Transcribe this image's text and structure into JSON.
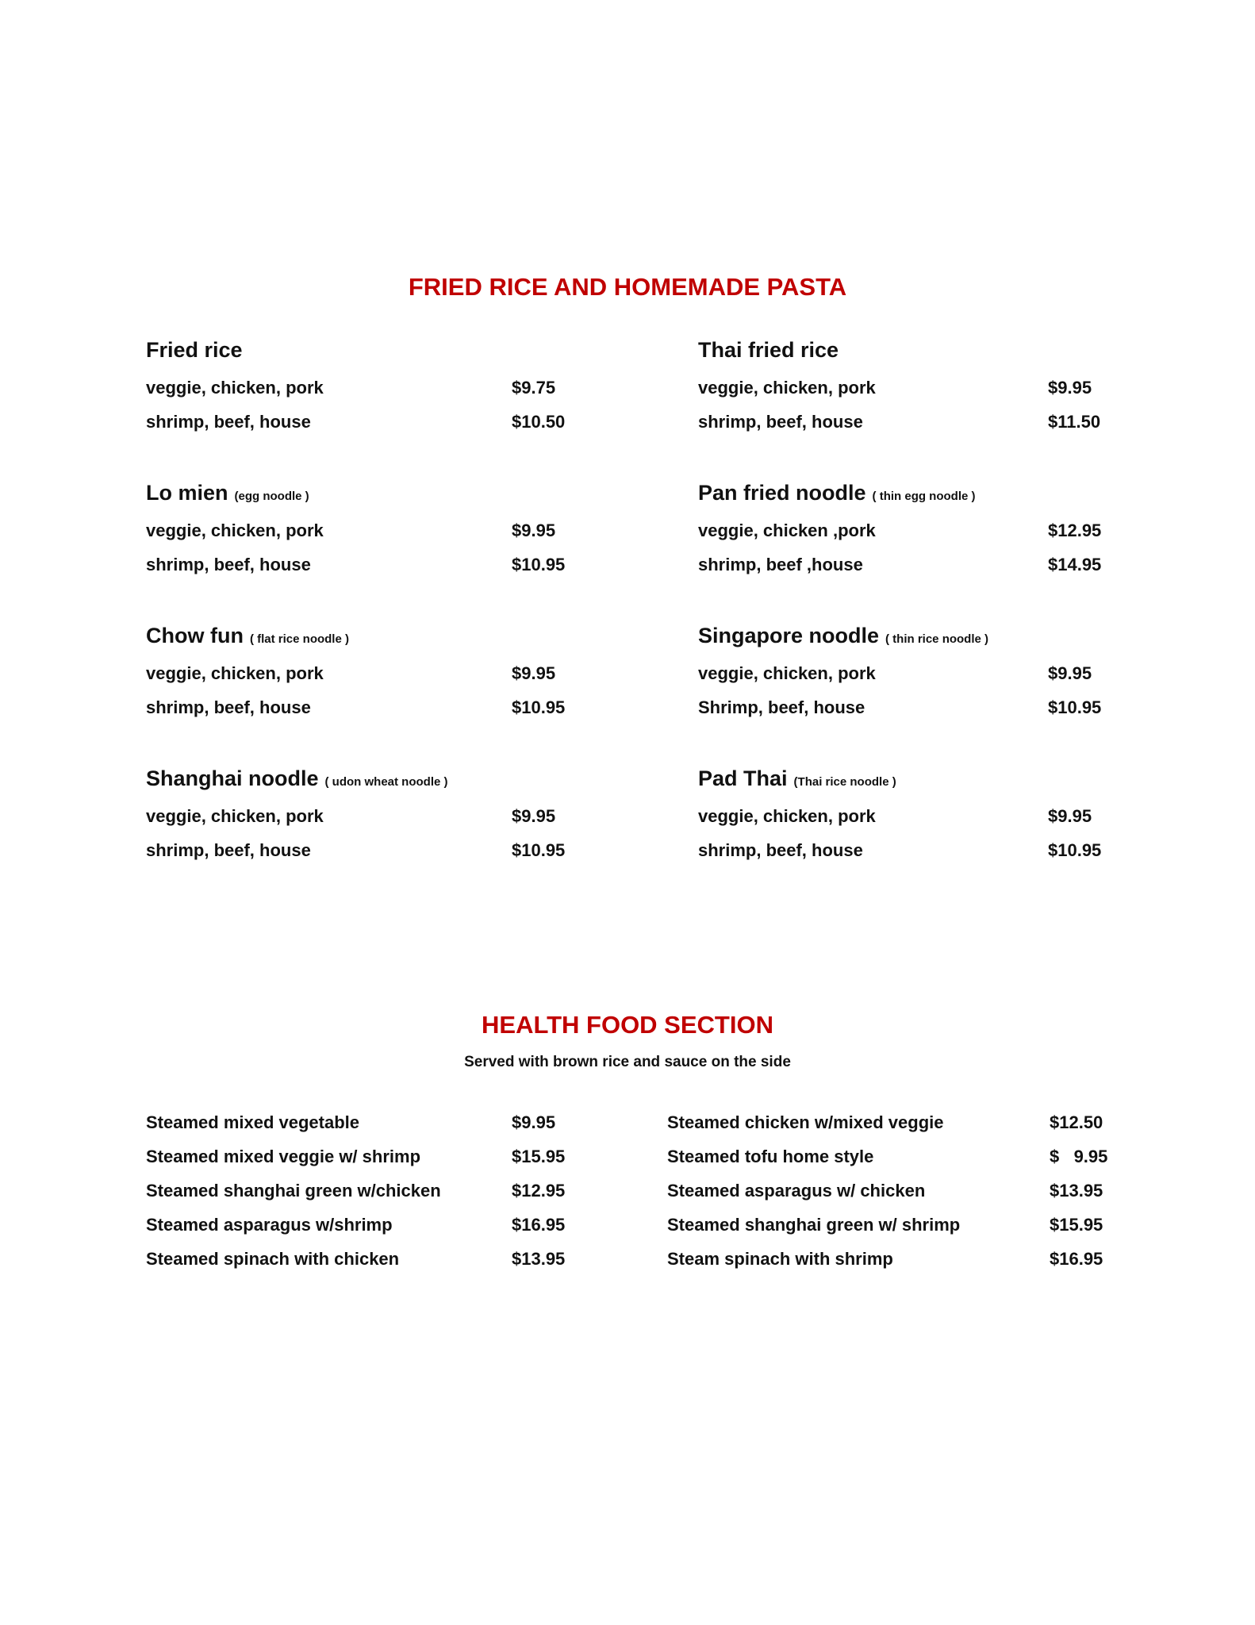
{
  "pasta": {
    "title": "FRIED RICE AND HOMEMADE PASTA",
    "color": "#c00000",
    "groups": [
      {
        "name": "Fried rice",
        "note": "",
        "rows": [
          {
            "item": "veggie, chicken, pork",
            "price": "$9.75"
          },
          {
            "item": "shrimp, beef, house",
            "price": "$10.50"
          }
        ]
      },
      {
        "name": "Thai fried rice",
        "note": "",
        "rows": [
          {
            "item": "veggie, chicken, pork",
            "price": "$9.95"
          },
          {
            "item": "shrimp, beef, house",
            "price": "$11.50"
          }
        ]
      },
      {
        "name": "Lo mien",
        "note": "(egg noodle )",
        "rows": [
          {
            "item": "veggie, chicken, pork",
            "price": "$9.95"
          },
          {
            "item": "shrimp, beef, house",
            "price": "$10.95"
          }
        ]
      },
      {
        "name": "Pan fried noodle",
        "note": "( thin egg noodle )",
        "rows": [
          {
            "item": "veggie, chicken ,pork",
            "price": "$12.95"
          },
          {
            "item": "shrimp, beef ,house",
            "price": "$14.95"
          }
        ]
      },
      {
        "name": "Chow fun",
        "note": "( flat rice noodle )",
        "rows": [
          {
            "item": "veggie, chicken, pork",
            "price": "$9.95"
          },
          {
            "item": "shrimp, beef, house",
            "price": "$10.95"
          }
        ]
      },
      {
        "name": "Singapore noodle",
        "note": "( thin rice noodle )",
        "rows": [
          {
            "item": "veggie, chicken, pork",
            "price": "$9.95"
          },
          {
            "item": "Shrimp, beef, house",
            "price": "$10.95"
          }
        ]
      },
      {
        "name": "Shanghai noodle",
        "note": "( udon wheat noodle )",
        "rows": [
          {
            "item": "veggie, chicken, pork",
            "price": "$9.95"
          },
          {
            "item": "shrimp, beef, house",
            "price": "$10.95"
          }
        ]
      },
      {
        "name": "Pad Thai",
        "note": "(Thai rice noodle )",
        "rows": [
          {
            "item": "veggie, chicken, pork",
            "price": "$9.95"
          },
          {
            "item": "shrimp, beef, house",
            "price": "$10.95"
          }
        ]
      }
    ]
  },
  "health": {
    "title": "HEALTH FOOD SECTION",
    "subtitle": "Served with brown rice and sauce on the side",
    "left": [
      {
        "item": "Steamed mixed vegetable",
        "price": "$9.95"
      },
      {
        "item": "Steamed mixed veggie w/ shrimp",
        "price": "$15.95"
      },
      {
        "item": "Steamed shanghai green w/chicken",
        "price": "$12.95"
      },
      {
        "item": "Steamed asparagus w/shrimp",
        "price": "$16.95"
      },
      {
        "item": "Steamed spinach with chicken",
        "price": "$13.95"
      }
    ],
    "right": [
      {
        "item": "Steamed chicken w/mixed veggie",
        "price": "$12.50"
      },
      {
        "item": "Steamed tofu home style",
        "price": "$   9.95"
      },
      {
        "item": "Steamed asparagus w/ chicken",
        "price": "$13.95"
      },
      {
        "item": "Steamed shanghai green w/ shrimp",
        "price": "$15.95"
      },
      {
        "item": "Steam spinach with shrimp",
        "price": "$16.95"
      }
    ]
  }
}
